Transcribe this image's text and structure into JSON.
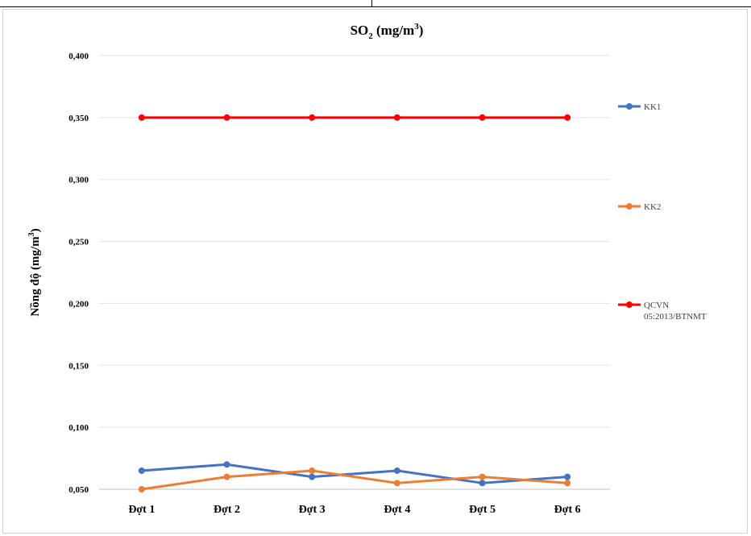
{
  "chart_data": {
    "type": "line",
    "title": {
      "main": "SO",
      "subscript": "2",
      "unit": " (mg/m",
      "superscript": "3",
      "close": ")"
    },
    "ylabel": {
      "main": "Nồng độ (mg/m",
      "superscript": "3",
      "close": ")"
    },
    "xlabel": "",
    "categories": [
      "Đợt 1",
      "Đợt 2",
      "Đợt 3",
      "Đợt 4",
      "Đợt 5",
      "Đợt 6"
    ],
    "ylim": [
      0.05,
      0.4
    ],
    "yticks": [
      "0,050",
      "0,100",
      "0,150",
      "0,200",
      "0,250",
      "0,300",
      "0,350",
      "0,400"
    ],
    "grid": true,
    "legend_position": "right",
    "series": [
      {
        "name": "KK1",
        "name_lines": [
          "KK1"
        ],
        "color": "#4472C4",
        "values": [
          0.065,
          0.07,
          0.06,
          0.065,
          0.055,
          0.06
        ]
      },
      {
        "name": "KK2",
        "name_lines": [
          "KK2"
        ],
        "color": "#ED7D31",
        "values": [
          0.05,
          0.06,
          0.065,
          0.055,
          0.06,
          0.055
        ]
      },
      {
        "name": "QCVN 05:2013/BTNMT",
        "name_lines": [
          "QCVN",
          "05:2013/BTNMT"
        ],
        "color": "#FF0000",
        "values": [
          0.35,
          0.35,
          0.35,
          0.35,
          0.35,
          0.35
        ]
      }
    ]
  }
}
